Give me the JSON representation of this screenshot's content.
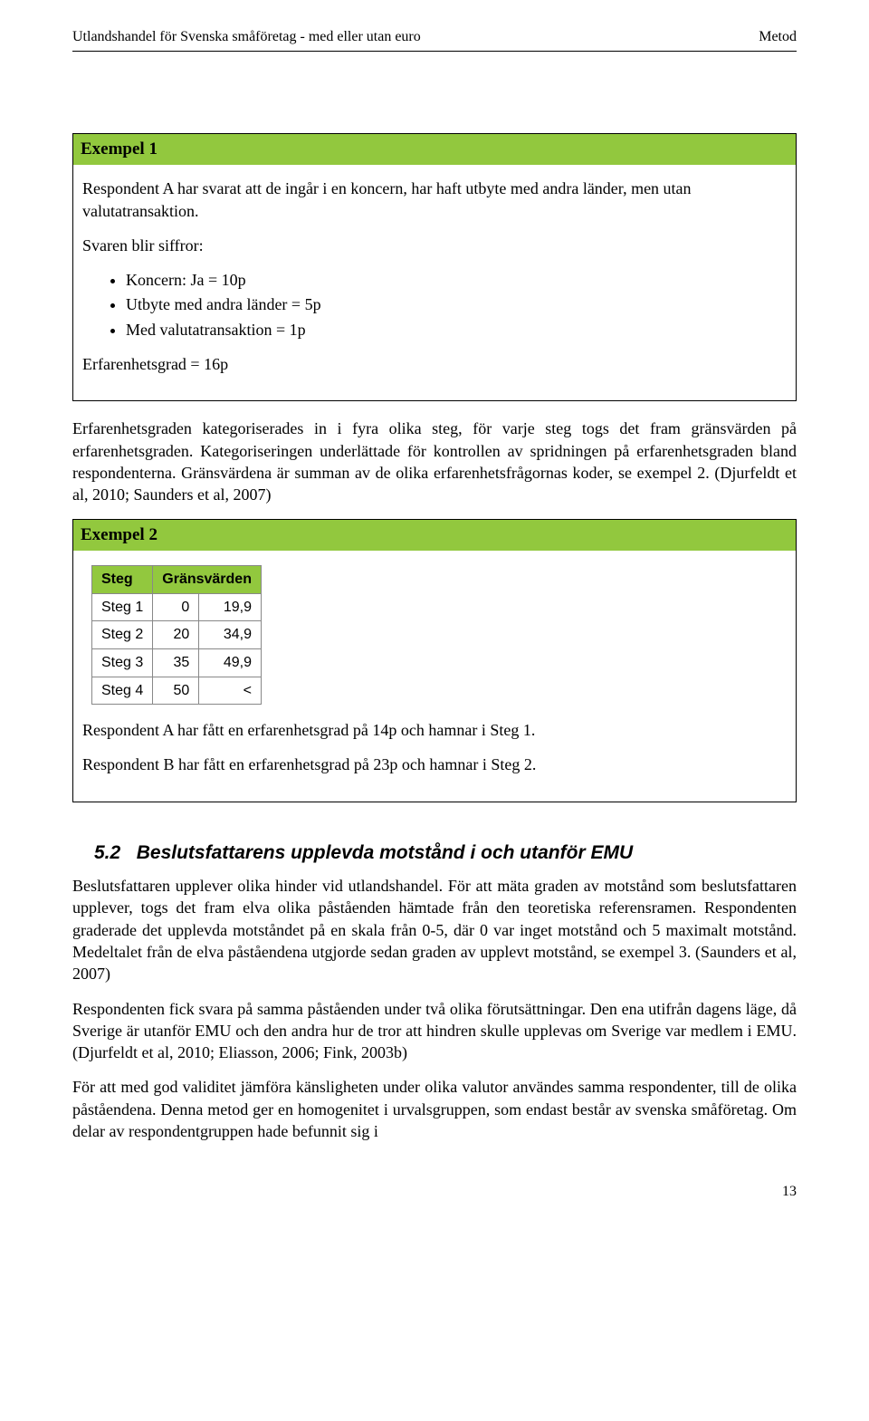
{
  "header": {
    "left": "Utlandshandel för Svenska småföretag - med eller utan euro",
    "right": "Metod"
  },
  "example1": {
    "title": "Exempel 1",
    "intro": "Respondent A har svarat att de ingår i en koncern, har haft utbyte med andra länder, men utan valutatransaktion.",
    "svaren": "Svaren blir siffror:",
    "bullets": {
      "b1": "Koncern: Ja = 10p",
      "b2": "Utbyte med andra länder = 5p",
      "b3": "Med valutatransaktion = 1p"
    },
    "erfgrad": "Erfarenhetsgrad = 16p"
  },
  "para1": "Erfarenhetsgraden kategoriserades in i fyra olika steg, för varje steg togs det fram gränsvärden på erfarenhetsgraden. Kategoriseringen underlättade för kontrollen av spridningen på erfarenhetsgraden bland respondenterna. Gränsvärdena är summan av de olika erfarenhetsfrågornas koder, se exempel 2. (Djurfeldt et al, 2010; Saunders et al, 2007)",
  "example2": {
    "title": "Exempel 2",
    "table": {
      "col1": "Steg",
      "col2": "Gränsvärden",
      "rows": [
        {
          "c1": "Steg 1",
          "c2": "0",
          "c3": "19,9"
        },
        {
          "c1": "Steg 2",
          "c2": "20",
          "c3": "34,9"
        },
        {
          "c1": "Steg 3",
          "c2": "35",
          "c3": "49,9"
        },
        {
          "c1": "Steg 4",
          "c2": "50",
          "c3": "<"
        }
      ]
    },
    "line1": "Respondent A har fått en erfarenhetsgrad på 14p och hamnar i Steg 1.",
    "line2": "Respondent B har fått en erfarenhetsgrad på 23p och hamnar i Steg 2."
  },
  "section52": {
    "number": "5.2",
    "title": "Beslutsfattarens upplevda motstånd i och utanför EMU"
  },
  "para2": "Beslutsfattaren upplever olika hinder vid utlandshandel. För att mäta graden av motstånd som beslutsfattaren upplever, togs det fram elva olika påståenden hämtade från den teoretiska referensramen. Respondenten graderade det upplevda motståndet på en skala från 0-5, där 0 var inget motstånd och 5 maximalt motstånd. Medeltalet från de elva påståendena utgjorde sedan graden av upplevt motstånd, se exempel 3. (Saunders et al, 2007)",
  "para3": "Respondenten fick svara på samma påståenden under två olika förutsättningar. Den ena utifrån dagens läge, då Sverige är utanför EMU och den andra hur de tror att hindren skulle upplevas om Sverige var medlem i EMU. (Djurfeldt et al, 2010; Eliasson, 2006; Fink, 2003b)",
  "para4": "För att med god validitet jämföra känsligheten under olika valutor användes samma respondenter, till de olika påståendena. Denna metod ger en homogenitet i urvalsgruppen, som endast består av svenska småföretag. Om delar av respondentgruppen hade befunnit sig i",
  "pagenum": "13"
}
